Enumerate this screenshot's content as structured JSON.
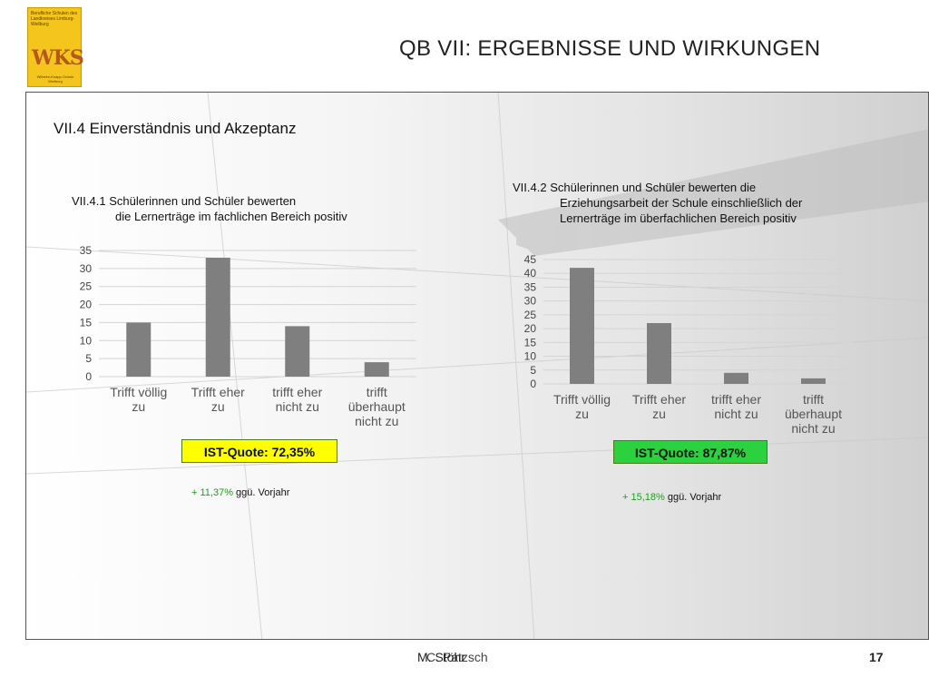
{
  "header": {
    "title": "QB VII: ERGEBNISSE UND WIRKUNGEN",
    "logo": {
      "top_text": "Berufliche Schulen des Landkreises Limburg-Weilburg",
      "monogram": "WKS",
      "bottom_text": "Wilhelm-Knapp-Schule Weilburg"
    }
  },
  "section_title": "VII.4 Einverständnis und Akzeptanz",
  "charts": [
    {
      "title_line1": "VII.4.1 Schülerinnen und Schüler bewerten",
      "title_line2": "die Lernerträge im fachlichen Bereich positiv",
      "quote": "IST-Quote: 72,35%",
      "delta_value": "+ 11,37%",
      "delta_rest": " ggü. Vorjahr"
    },
    {
      "title_line1": "VII.4.2 Schülerinnen und Schüler bewerten die",
      "title_line2": "Erziehungsarbeit der Schule einschließlich der",
      "title_line3": "Lernerträge im überfachlichen Bereich positiv",
      "quote": "IST-Quote: 87,87%",
      "delta_value": "+ 15,18%",
      "delta_rest": " ggü. Vorjahr"
    }
  ],
  "chart_data": [
    {
      "type": "bar",
      "categories": [
        "Trifft völlig zu",
        "Trifft eher zu",
        "trifft eher nicht zu",
        "trifft überhaupt nicht zu"
      ],
      "category_lines": [
        [
          "Trifft völlig",
          "zu"
        ],
        [
          "Trifft eher",
          "zu"
        ],
        [
          "trifft eher",
          "nicht zu"
        ],
        [
          "trifft",
          "überhaupt",
          "nicht zu"
        ]
      ],
      "values": [
        15,
        33,
        14,
        4
      ],
      "ylim": [
        0,
        35
      ],
      "yticks": [
        0,
        5,
        10,
        15,
        20,
        25,
        30,
        35
      ],
      "bar_color": "#7f7f7f",
      "grid": true
    },
    {
      "type": "bar",
      "categories": [
        "Trifft völlig zu",
        "Trifft eher zu",
        "trifft eher nicht zu",
        "trifft überhaupt nicht zu"
      ],
      "category_lines": [
        [
          "Trifft völlig",
          "zu"
        ],
        [
          "Trifft eher",
          "zu"
        ],
        [
          "trifft eher",
          "nicht zu"
        ],
        [
          "trifft",
          "überhaupt",
          "nicht zu"
        ]
      ],
      "values": [
        42,
        22,
        4,
        2
      ],
      "ylim": [
        0,
        45
      ],
      "yticks": [
        0,
        5,
        10,
        15,
        20,
        25,
        30,
        35,
        40,
        45
      ],
      "bar_color": "#7f7f7f",
      "grid": true
    }
  ],
  "footer": {
    "text_a": "M. Stöhr",
    "text_b": "C. Patzsch",
    "page": "17"
  }
}
